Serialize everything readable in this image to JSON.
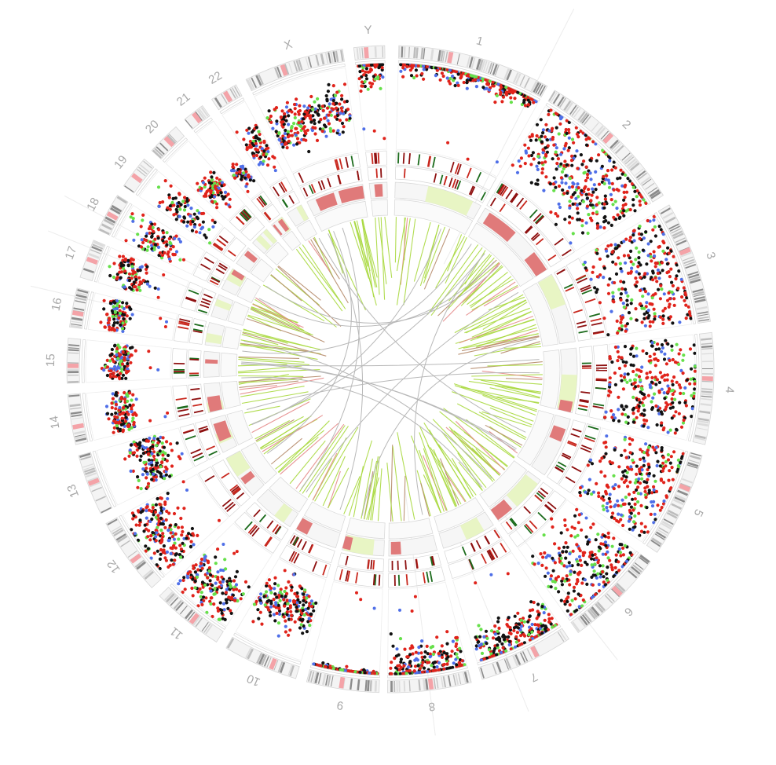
{
  "figure": {
    "type": "circos",
    "colors": {
      "ideogram_band_dark": "#8c8c8c",
      "ideogram_band_mid": "#bdbdbd",
      "ideogram_band_light": "#dcdcdc",
      "centromere": "#f4a3a8",
      "track_border": "#d6d6d6",
      "track_fill": "#f6f6f6",
      "scatter_red": "#e0231b",
      "scatter_black": "#111111",
      "scatter_green": "#66e04a",
      "scatter_blue": "#4f6fe8",
      "tick_dark_red": "#8e1010",
      "tick_red": "#c8281e",
      "tick_green": "#1c6b1c",
      "cnv_loss": "#e07a7a",
      "cnv_gain": "#e8f5c4",
      "link_green": "#a9d93f",
      "link_brown": "#b58a6a",
      "link_red": "#e58a8a",
      "link_gray": "#b8b8b8"
    }
  },
  "chromosomes": [
    {
      "label": "1"
    },
    {
      "label": "2"
    },
    {
      "label": "3"
    },
    {
      "label": "4"
    },
    {
      "label": "5"
    },
    {
      "label": "6"
    },
    {
      "label": "7"
    },
    {
      "label": "8"
    },
    {
      "label": "9"
    },
    {
      "label": "10"
    },
    {
      "label": "11"
    },
    {
      "label": "12"
    },
    {
      "label": "13"
    },
    {
      "label": "14"
    },
    {
      "label": "15"
    },
    {
      "label": "16"
    },
    {
      "label": "17"
    },
    {
      "label": "18"
    },
    {
      "label": "19"
    },
    {
      "label": "20"
    },
    {
      "label": "21"
    },
    {
      "label": "22"
    },
    {
      "label": "X"
    },
    {
      "label": "Y"
    }
  ]
}
